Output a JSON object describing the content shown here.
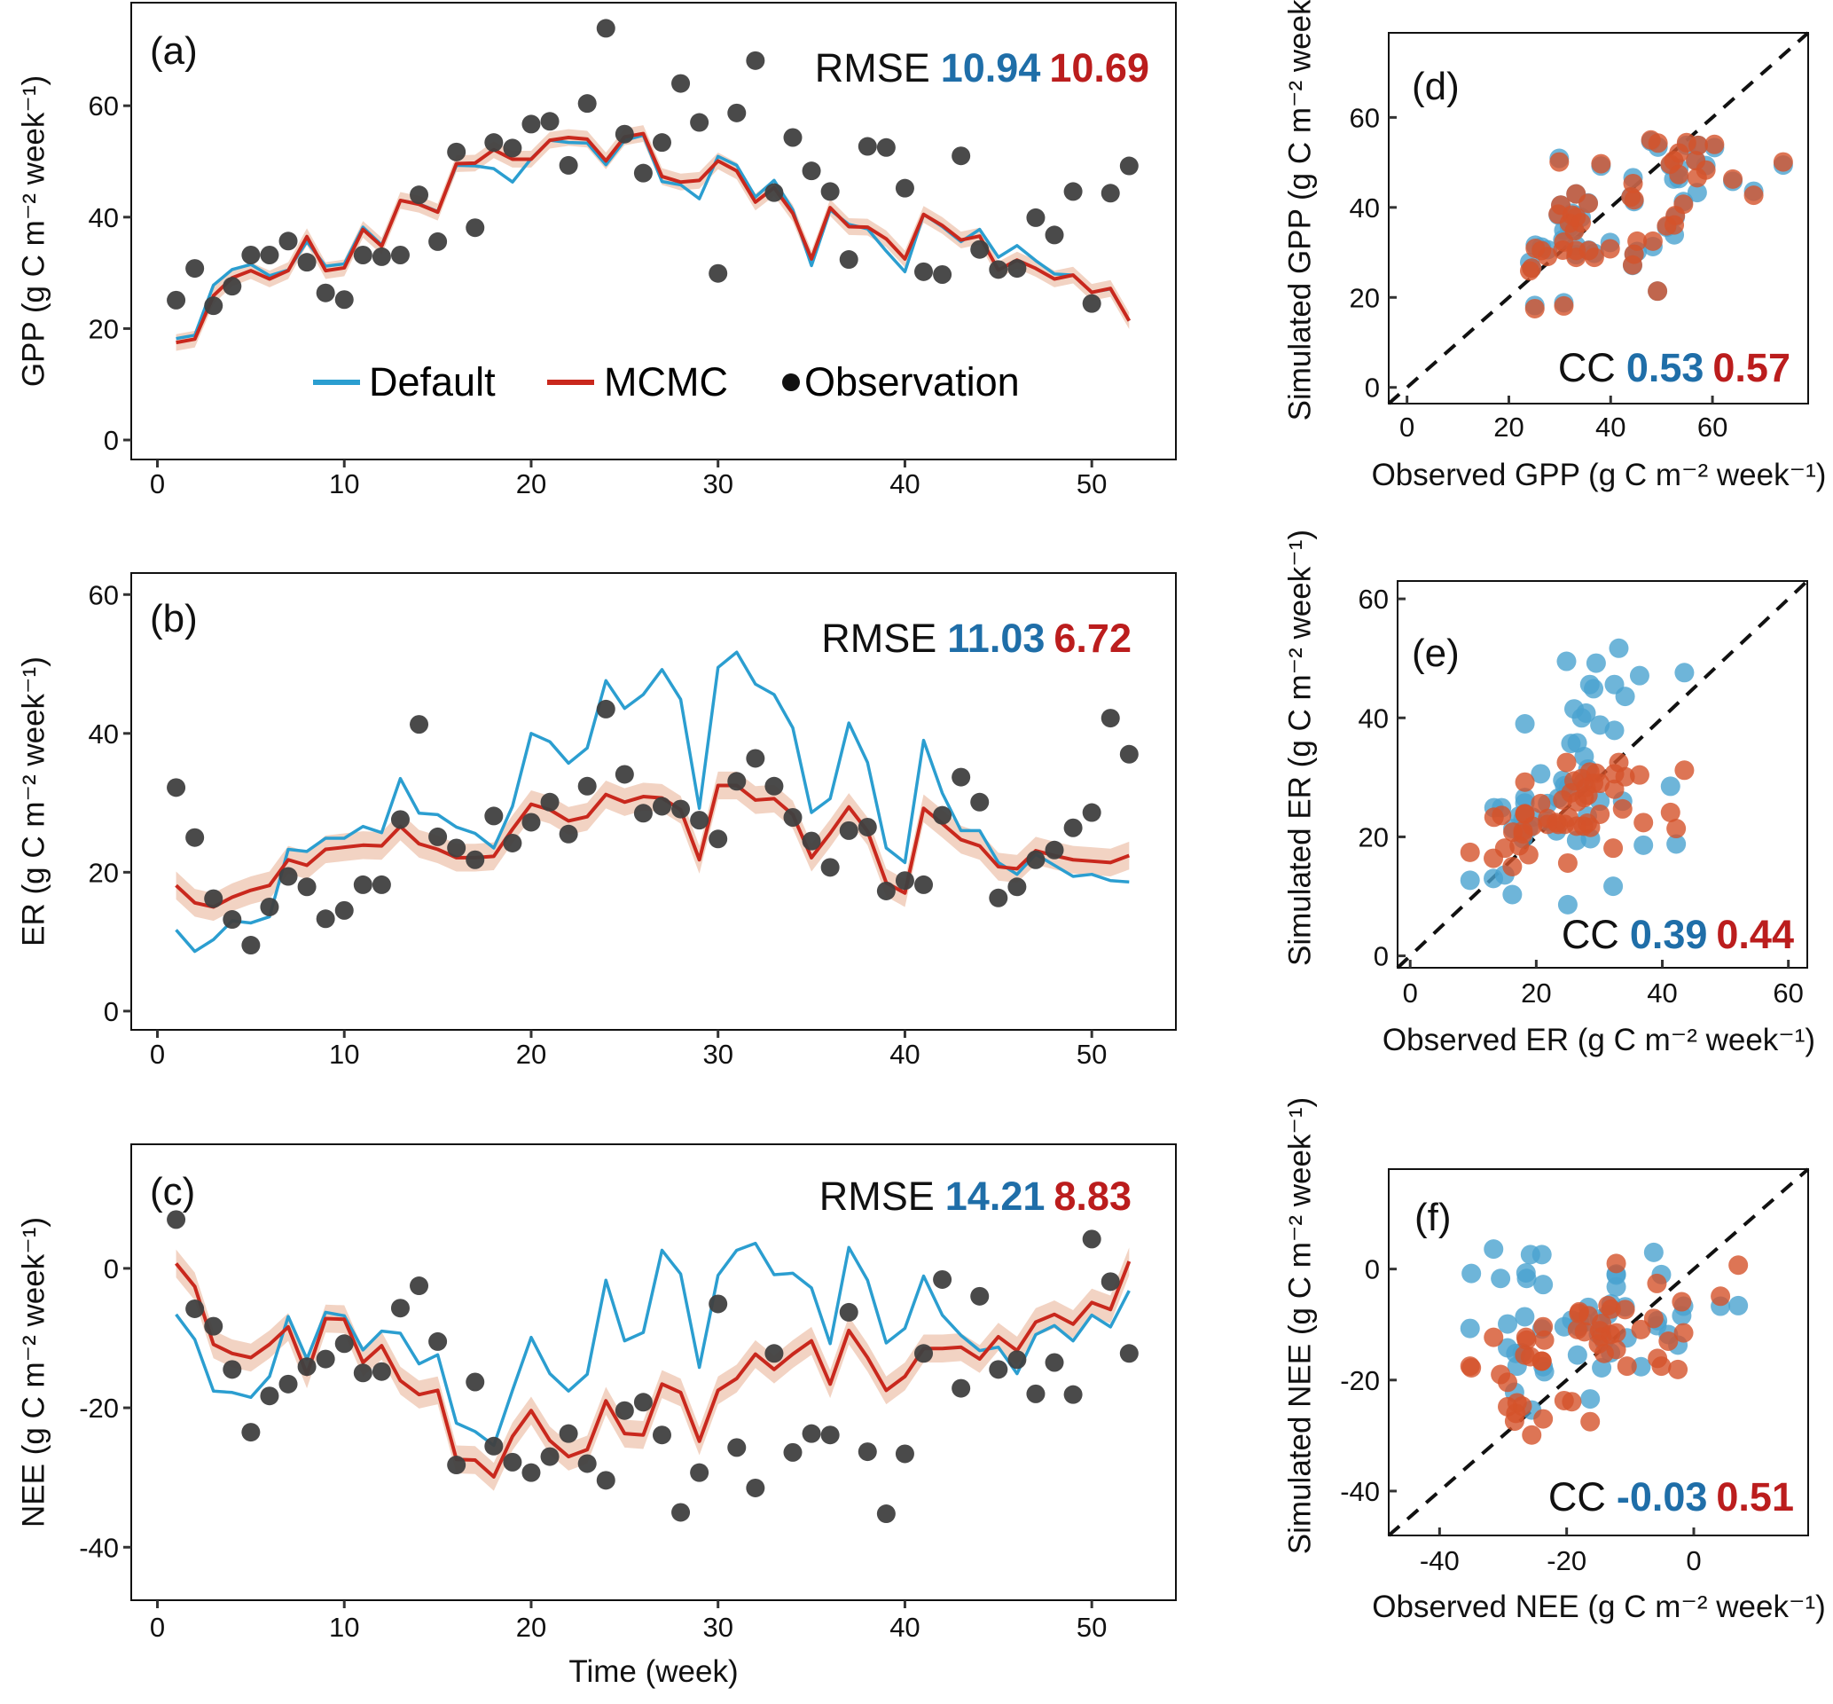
{
  "colors": {
    "default_line": "#2b9ed0",
    "default_text": "#1f6ea8",
    "mcmc_line": "#c9281d",
    "mcmc_text": "#bb1d1d",
    "mcmc_band": "#f0cbb8",
    "observation": "#404040",
    "scatter_default": "#4aa3d0",
    "scatter_mcmc": "#d4532b",
    "one_to_one": "#111111"
  },
  "legend": {
    "default": "Default",
    "mcmc": "MCMC",
    "observation": "Observation",
    "placement": "bottom-center of panel (a)"
  },
  "chart_data": [
    {
      "panel": "(a)",
      "type": "line",
      "ylabel": "GPP (g C m⁻² week⁻¹)",
      "xlabel": "",
      "xlim": [
        -1.4,
        54.5
      ],
      "ylim": [
        -3.5,
        78.5
      ],
      "xticks": [
        0,
        10,
        20,
        30,
        40,
        50
      ],
      "yticks": [
        0,
        20,
        40,
        60
      ],
      "metric_label": "RMSE",
      "metric_default": "10.94",
      "metric_mcmc": "10.69",
      "band_halfwidth": 1.5,
      "x": [
        1,
        2,
        3,
        4,
        5,
        6,
        7,
        8,
        9,
        10,
        11,
        12,
        13,
        14,
        15,
        16,
        17,
        18,
        19,
        20,
        21,
        22,
        23,
        24,
        25,
        26,
        27,
        28,
        29,
        30,
        31,
        32,
        33,
        34,
        35,
        36,
        37,
        38,
        39,
        40,
        41,
        42,
        43,
        44,
        45,
        46,
        47,
        48,
        49,
        50,
        51,
        52
      ],
      "series": [
        {
          "name": "Default",
          "values": [
            18.2,
            18.8,
            27.8,
            30.6,
            31.5,
            29.5,
            30.5,
            35.6,
            31.2,
            31.6,
            38.2,
            35.0,
            43.0,
            42.4,
            41.0,
            49.3,
            49.2,
            48.7,
            46.3,
            50.5,
            53.8,
            53.4,
            53.3,
            49.4,
            53.8,
            54.7,
            46.4,
            45.8,
            43.3,
            50.9,
            49.3,
            43.6,
            46.6,
            41.3,
            31.3,
            41.3,
            38.7,
            37.9,
            33.9,
            30.2,
            40.5,
            38.3,
            35.6,
            37.8,
            32.8,
            34.9,
            32.2,
            29.8,
            29.6,
            26.5,
            27.1,
            21.4
          ]
        },
        {
          "name": "MCMC",
          "values": [
            17.5,
            18.1,
            25.9,
            29.1,
            30.4,
            28.9,
            30.4,
            36.5,
            30.4,
            30.9,
            37.8,
            34.8,
            43.0,
            42.3,
            40.9,
            49.6,
            49.7,
            52.1,
            50.4,
            50.4,
            53.8,
            54.3,
            54.0,
            50.1,
            54.4,
            55.0,
            47.3,
            46.3,
            46.6,
            50.1,
            48.3,
            42.7,
            45.3,
            40.7,
            32.5,
            41.7,
            38.3,
            38.2,
            36.1,
            32.5,
            40.5,
            38.5,
            35.9,
            36.6,
            30.5,
            32.3,
            30.8,
            28.9,
            29.6,
            26.5,
            27.2,
            21.4
          ]
        },
        {
          "name": "Observation",
          "values": [
            25.1,
            30.8,
            24.1,
            27.6,
            33.2,
            33.2,
            35.7,
            31.9,
            26.4,
            25.2,
            33.2,
            32.9,
            33.2,
            44.0,
            35.6,
            51.7,
            38.1,
            53.4,
            52.4,
            56.7,
            57.2,
            49.3,
            60.4,
            73.9,
            54.9,
            47.9,
            53.4,
            64.0,
            57.0,
            29.9,
            58.7,
            68.1,
            44.4,
            54.3,
            48.3,
            44.6,
            32.4,
            52.7,
            52.5,
            45.2,
            30.2,
            29.7,
            51.0,
            34.2,
            30.6,
            30.8,
            39.9,
            36.8,
            44.6,
            24.5,
            44.3,
            49.2
          ]
        }
      ]
    },
    {
      "panel": "(b)",
      "type": "line",
      "ylabel": "ER (g C m⁻² week⁻¹)",
      "xlabel": "",
      "xlim": [
        -1.4,
        54.5
      ],
      "ylim": [
        -2.7,
        63.1
      ],
      "xticks": [
        0,
        10,
        20,
        30,
        40,
        50
      ],
      "yticks": [
        0,
        20,
        40,
        60
      ],
      "metric_label": "RMSE",
      "metric_default": "11.03",
      "metric_mcmc": "6.72",
      "band_halfwidth": 2.0,
      "x": [
        1,
        2,
        3,
        4,
        5,
        6,
        7,
        8,
        9,
        10,
        11,
        12,
        13,
        14,
        15,
        16,
        17,
        18,
        19,
        20,
        21,
        22,
        23,
        24,
        25,
        26,
        27,
        28,
        29,
        30,
        31,
        32,
        33,
        34,
        35,
        36,
        37,
        38,
        39,
        40,
        41,
        42,
        43,
        44,
        45,
        46,
        47,
        48,
        49,
        50,
        51,
        52
      ],
      "series": [
        {
          "name": "Default",
          "values": [
            11.7,
            8.6,
            10.3,
            13.0,
            12.7,
            13.6,
            23.3,
            23.0,
            24.9,
            24.9,
            26.6,
            25.7,
            33.5,
            28.5,
            28.3,
            26.5,
            25.6,
            23.5,
            29.5,
            40.0,
            38.8,
            35.7,
            37.9,
            47.6,
            43.6,
            45.6,
            49.2,
            44.9,
            29.2,
            49.5,
            51.7,
            47.1,
            45.6,
            40.8,
            28.6,
            30.6,
            41.5,
            35.8,
            23.5,
            21.4,
            39.0,
            31.4,
            26.0,
            26.0,
            21.4,
            19.7,
            22.6,
            21.0,
            19.4,
            19.7,
            18.8,
            18.6
          ]
        },
        {
          "name": "MCMC",
          "values": [
            18.1,
            15.6,
            15.0,
            16.4,
            17.4,
            18.1,
            21.8,
            21.0,
            23.3,
            23.6,
            23.9,
            23.8,
            26.6,
            24.1,
            23.3,
            22.1,
            22.1,
            22.3,
            26.2,
            29.8,
            29.0,
            27.4,
            28.0,
            31.2,
            30.1,
            30.9,
            30.7,
            29.0,
            21.8,
            32.5,
            32.5,
            30.4,
            30.6,
            28.3,
            22.1,
            25.6,
            29.4,
            25.9,
            18.5,
            17.0,
            29.2,
            27.0,
            24.7,
            23.8,
            20.8,
            20.5,
            23.1,
            22.4,
            21.8,
            21.6,
            21.4,
            22.4
          ]
        },
        {
          "name": "Observation",
          "values": [
            32.2,
            25.0,
            16.2,
            13.2,
            9.5,
            15.0,
            19.4,
            17.9,
            13.3,
            14.5,
            18.2,
            18.2,
            27.6,
            41.3,
            25.1,
            23.5,
            21.8,
            28.1,
            24.2,
            27.2,
            30.1,
            25.5,
            32.4,
            43.5,
            34.1,
            28.5,
            29.5,
            29.1,
            27.5,
            24.8,
            33.1,
            36.4,
            32.4,
            27.9,
            24.5,
            20.7,
            26.0,
            26.5,
            17.3,
            18.8,
            18.2,
            28.2,
            33.7,
            30.1,
            16.3,
            17.9,
            21.8,
            23.2,
            26.4,
            28.6,
            42.2,
            37.0
          ]
        }
      ]
    },
    {
      "panel": "(c)",
      "type": "line",
      "ylabel": "NEE (g C m⁻² week⁻¹)",
      "xlabel": "Time (week)",
      "xlim": [
        -1.4,
        54.5
      ],
      "ylim": [
        -47.6,
        17.8
      ],
      "xticks": [
        0,
        10,
        20,
        30,
        40,
        50
      ],
      "yticks": [
        -40,
        -20,
        0
      ],
      "metric_label": "RMSE",
      "metric_default": "14.21",
      "metric_mcmc": "8.83",
      "band_halfwidth": 2.0,
      "x": [
        1,
        2,
        3,
        4,
        5,
        6,
        7,
        8,
        9,
        10,
        11,
        12,
        13,
        14,
        15,
        16,
        17,
        18,
        19,
        20,
        21,
        22,
        23,
        24,
        25,
        26,
        27,
        28,
        29,
        30,
        31,
        32,
        33,
        34,
        35,
        36,
        37,
        38,
        39,
        40,
        41,
        42,
        43,
        44,
        45,
        46,
        47,
        48,
        49,
        50,
        51,
        52
      ],
      "series": [
        {
          "name": "Default",
          "values": [
            -6.6,
            -10.2,
            -17.6,
            -17.8,
            -18.5,
            -15.5,
            -6.9,
            -13.0,
            -6.3,
            -6.8,
            -11.7,
            -9.0,
            -9.3,
            -13.7,
            -12.4,
            -22.2,
            -23.4,
            -25.4,
            -17.5,
            -9.9,
            -15.1,
            -17.6,
            -15.2,
            -1.7,
            -10.4,
            -9.2,
            2.6,
            -0.8,
            -14.2,
            -1.0,
            2.6,
            3.6,
            -0.9,
            -0.7,
            -2.8,
            -10.8,
            3.0,
            -1.7,
            -10.7,
            -8.6,
            -1.1,
            -6.7,
            -9.6,
            -11.8,
            -11.3,
            -15.1,
            -9.5,
            -8.2,
            -10.4,
            -6.7,
            -8.4,
            -3.2
          ]
        },
        {
          "name": "MCMC",
          "values": [
            0.7,
            -2.6,
            -10.9,
            -12.2,
            -12.8,
            -10.9,
            -8.4,
            -15.2,
            -7.2,
            -7.3,
            -13.5,
            -11.1,
            -16.1,
            -18.1,
            -17.5,
            -27.4,
            -27.5,
            -29.9,
            -24.1,
            -20.4,
            -24.7,
            -27.0,
            -26.0,
            -19.0,
            -23.7,
            -23.9,
            -16.6,
            -17.8,
            -24.8,
            -17.5,
            -15.8,
            -12.3,
            -14.5,
            -12.3,
            -10.4,
            -16.6,
            -8.9,
            -12.8,
            -17.5,
            -15.5,
            -11.5,
            -11.5,
            -11.3,
            -13.0,
            -9.8,
            -11.8,
            -7.7,
            -6.6,
            -8.0,
            -4.9,
            -5.9,
            1.0
          ]
        },
        {
          "name": "Observation",
          "values": [
            7.0,
            -5.8,
            -8.3,
            -14.5,
            -23.5,
            -18.3,
            -16.6,
            -14.1,
            -13.0,
            -10.8,
            -15.0,
            -14.8,
            -5.7,
            -2.5,
            -10.5,
            -28.2,
            -16.3,
            -25.5,
            -27.8,
            -29.3,
            -27.0,
            -23.7,
            -28.0,
            -30.4,
            -20.4,
            -19.2,
            -23.9,
            -35.0,
            -29.3,
            -5.1,
            -25.7,
            -31.5,
            -12.2,
            -26.4,
            -23.7,
            -23.9,
            -6.3,
            -26.3,
            -35.2,
            -26.6,
            -12.2,
            -1.6,
            -17.2,
            -4.0,
            -14.5,
            -13.1,
            -18.0,
            -13.5,
            -18.1,
            4.2,
            -1.9,
            -12.2
          ]
        }
      ]
    },
    {
      "panel": "(d)",
      "type": "scatter",
      "xlabel": "Observed GPP (g C m⁻² week⁻¹)",
      "ylabel": "Simulated GPP (g C m⁻² week⁻¹)",
      "xlim": [
        -3.6,
        78.8
      ],
      "ylim": [
        -3.6,
        78.8
      ],
      "ticks": [
        0,
        20,
        40,
        60
      ],
      "one_to_one_line": true,
      "x_series": "Observation",
      "y_series": [
        "Default",
        "MCMC"
      ],
      "source": "(a)",
      "metric_label": "CC",
      "metric_default": "0.53",
      "metric_mcmc": "0.57"
    },
    {
      "panel": "(e)",
      "type": "scatter",
      "xlabel": "Observed ER (g C m⁻² week⁻¹)",
      "ylabel": "Simulated ER (g C m⁻² week⁻¹)",
      "xlim": [
        -2,
        63
      ],
      "ylim": [
        -2,
        63
      ],
      "ticks": [
        0,
        20,
        40,
        60
      ],
      "one_to_one_line": true,
      "x_series": "Observation",
      "y_series": [
        "Default",
        "MCMC"
      ],
      "source": "(b)",
      "metric_label": "CC",
      "metric_default": "0.39",
      "metric_mcmc": "0.44"
    },
    {
      "panel": "(f)",
      "type": "scatter",
      "xlabel": "Observed NEE (g C m⁻² week⁻¹)",
      "ylabel": "Simulated NEE (g C m⁻² week⁻¹)",
      "xlim": [
        -48,
        18
      ],
      "ylim": [
        -48,
        18
      ],
      "ticks": [
        -40,
        -20,
        0
      ],
      "one_to_one_line": true,
      "x_series": "Observation",
      "y_series": [
        "Default",
        "MCMC"
      ],
      "source": "(c)",
      "metric_label": "CC",
      "metric_default": "-0.03",
      "metric_mcmc": "0.51"
    }
  ]
}
